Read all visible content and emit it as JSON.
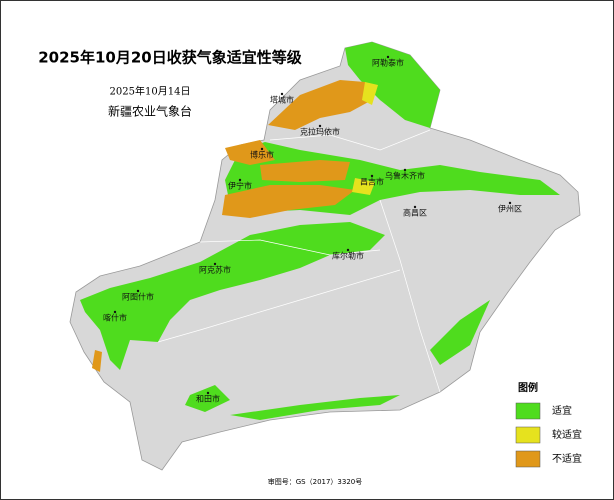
{
  "header": {
    "title": "2025年10月20日收获气象适宜性等级",
    "date": "2025年10月14日",
    "issuer": "新疆农业气象台"
  },
  "cities": [
    "阿勒泰市",
    "塔城市",
    "克拉玛依市",
    "博乐市",
    "伊宁市",
    "昌吉市",
    "乌鲁木齐市",
    "高昌区",
    "伊州区",
    "库尔勒市",
    "阿克苏市",
    "阿图什市",
    "喀什市",
    "和田市"
  ],
  "legend": {
    "title": "图例",
    "items": [
      {
        "label": "适宜",
        "color": "#4fdc1e"
      },
      {
        "label": "较适宜",
        "color": "#e6e21e"
      },
      {
        "label": "不适宜",
        "color": "#e0981a"
      }
    ]
  },
  "footer": "审图号：GS（2017）3320号"
}
